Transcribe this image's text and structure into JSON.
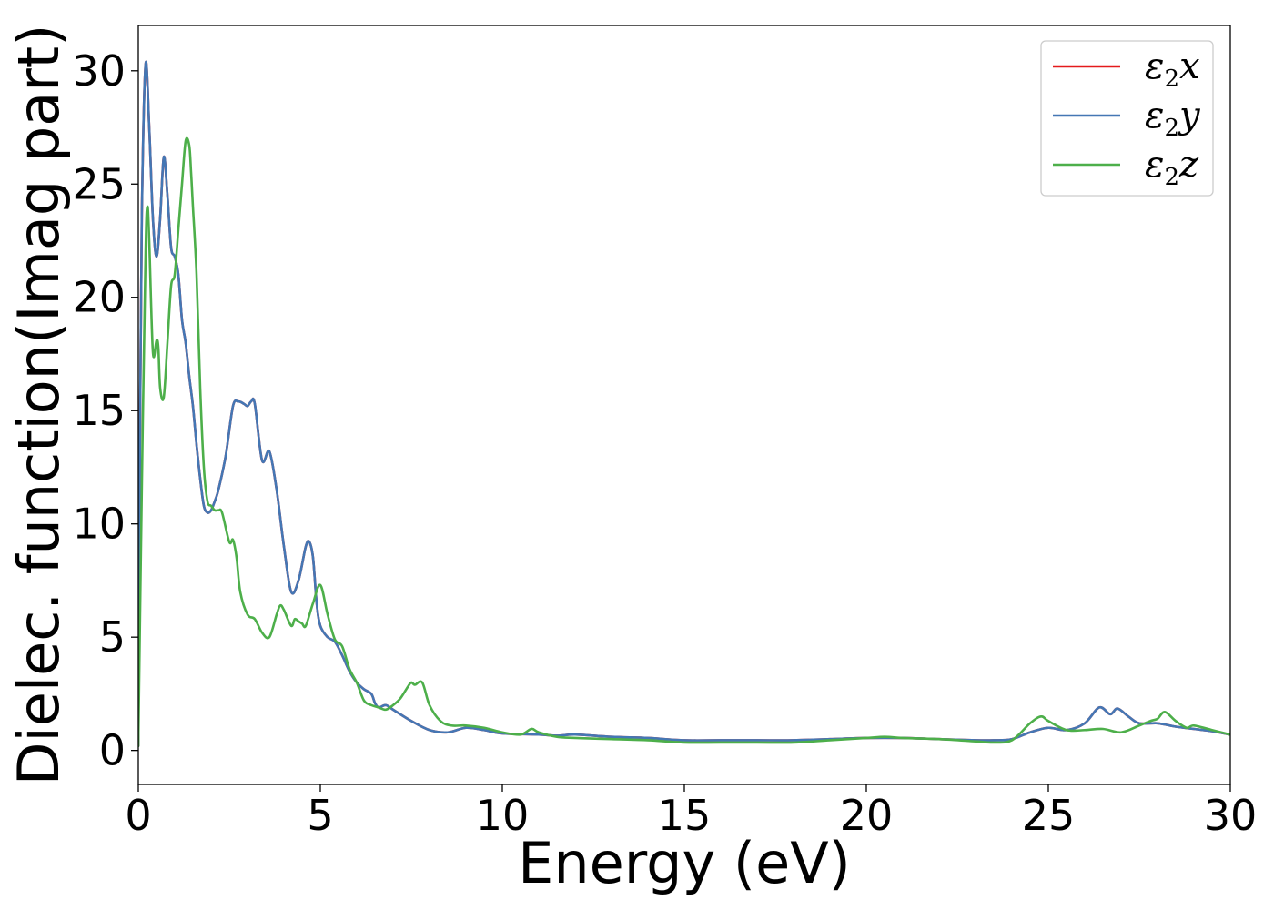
{
  "chart_data": {
    "type": "line",
    "xlabel": "Energy (eV)",
    "ylabel": "Dielec. function(Imag part)",
    "xlim": [
      0,
      30
    ],
    "ylim": [
      -1.5,
      32
    ],
    "xticks": [
      0,
      5,
      10,
      15,
      20,
      25,
      30
    ],
    "yticks": [
      0,
      5,
      10,
      15,
      20,
      25,
      30
    ],
    "grid": false,
    "legend_position": "top-right",
    "series": [
      {
        "name": "ε2x",
        "legend_symbol": "ε",
        "legend_sub": "2",
        "legend_var": "x",
        "color": "#e41a1c",
        "x": [
          0,
          0.05,
          0.1,
          0.2,
          0.3,
          0.4,
          0.5,
          0.6,
          0.7,
          0.8,
          0.9,
          1.0,
          1.1,
          1.2,
          1.3,
          1.4,
          1.5,
          1.6,
          1.7,
          1.8,
          1.9,
          2.0,
          2.1,
          2.2,
          2.4,
          2.6,
          2.75,
          2.9,
          3.0,
          3.1,
          3.2,
          3.4,
          3.6,
          3.8,
          4.0,
          4.2,
          4.4,
          4.6,
          4.7,
          4.8,
          4.9,
          5.0,
          5.2,
          5.4,
          5.6,
          5.8,
          6.0,
          6.2,
          6.4,
          6.5,
          6.6,
          6.8,
          7.0,
          7.5,
          8.0,
          8.5,
          9.0,
          9.5,
          10.0,
          11.0,
          11.5,
          12.0,
          13.0,
          14.0,
          15.0,
          16.0,
          17.0,
          18.0,
          19.0,
          20.0,
          21.0,
          22.0,
          23.0,
          23.5,
          24.0,
          24.5,
          25.0,
          25.5,
          26.0,
          26.4,
          26.7,
          26.9,
          27.2,
          27.5,
          28.0,
          28.5,
          29.0,
          29.5,
          30.0
        ],
        "y": [
          0.2,
          15,
          24,
          30.3,
          27.5,
          23.5,
          21.8,
          23.5,
          26.2,
          24.5,
          22.2,
          21.8,
          21.0,
          19.0,
          18.0,
          16.5,
          15.2,
          13.5,
          12.0,
          10.8,
          10.5,
          10.6,
          11.0,
          11.5,
          13.0,
          15.2,
          15.4,
          15.3,
          15.2,
          15.4,
          15.3,
          12.8,
          13.2,
          11.5,
          9.0,
          7.0,
          7.5,
          9.0,
          9.2,
          8.5,
          6.5,
          5.5,
          5.0,
          4.8,
          4.2,
          3.5,
          3.0,
          2.7,
          2.5,
          2.1,
          1.9,
          2.0,
          1.8,
          1.3,
          0.9,
          0.8,
          1.0,
          0.9,
          0.75,
          0.7,
          0.65,
          0.7,
          0.6,
          0.55,
          0.45,
          0.45,
          0.45,
          0.45,
          0.5,
          0.55,
          0.55,
          0.5,
          0.45,
          0.45,
          0.5,
          0.8,
          1.0,
          0.9,
          1.2,
          1.9,
          1.6,
          1.85,
          1.5,
          1.2,
          1.2,
          1.05,
          0.95,
          0.85,
          0.7
        ]
      },
      {
        "name": "ε2y",
        "legend_symbol": "ε",
        "legend_sub": "2",
        "legend_var": "y",
        "color": "#4477b4",
        "x": [
          0,
          0.05,
          0.1,
          0.2,
          0.3,
          0.4,
          0.5,
          0.6,
          0.7,
          0.8,
          0.9,
          1.0,
          1.1,
          1.2,
          1.3,
          1.4,
          1.5,
          1.6,
          1.7,
          1.8,
          1.9,
          2.0,
          2.1,
          2.2,
          2.4,
          2.6,
          2.75,
          2.9,
          3.0,
          3.1,
          3.2,
          3.4,
          3.6,
          3.8,
          4.0,
          4.2,
          4.4,
          4.6,
          4.7,
          4.8,
          4.9,
          5.0,
          5.2,
          5.4,
          5.6,
          5.8,
          6.0,
          6.2,
          6.4,
          6.5,
          6.6,
          6.8,
          7.0,
          7.5,
          8.0,
          8.5,
          9.0,
          9.5,
          10.0,
          11.0,
          11.5,
          12.0,
          13.0,
          14.0,
          15.0,
          16.0,
          17.0,
          18.0,
          19.0,
          20.0,
          21.0,
          22.0,
          23.0,
          23.5,
          24.0,
          24.5,
          25.0,
          25.5,
          26.0,
          26.4,
          26.7,
          26.9,
          27.2,
          27.5,
          28.0,
          28.5,
          29.0,
          29.5,
          30.0
        ],
        "y": [
          0.2,
          15,
          24,
          30.3,
          27.5,
          23.5,
          21.8,
          23.5,
          26.2,
          24.5,
          22.2,
          21.8,
          21.0,
          19.0,
          18.0,
          16.5,
          15.2,
          13.5,
          12.0,
          10.8,
          10.5,
          10.6,
          11.0,
          11.5,
          13.0,
          15.2,
          15.4,
          15.3,
          15.2,
          15.4,
          15.3,
          12.8,
          13.2,
          11.5,
          9.0,
          7.0,
          7.5,
          9.0,
          9.2,
          8.5,
          6.5,
          5.5,
          5.0,
          4.8,
          4.2,
          3.5,
          3.0,
          2.7,
          2.5,
          2.1,
          1.9,
          2.0,
          1.8,
          1.3,
          0.9,
          0.8,
          1.0,
          0.9,
          0.75,
          0.7,
          0.65,
          0.7,
          0.6,
          0.55,
          0.45,
          0.45,
          0.45,
          0.45,
          0.5,
          0.55,
          0.55,
          0.5,
          0.45,
          0.45,
          0.5,
          0.8,
          1.0,
          0.9,
          1.2,
          1.9,
          1.6,
          1.85,
          1.5,
          1.2,
          1.2,
          1.05,
          0.95,
          0.85,
          0.7
        ]
      },
      {
        "name": "ε2z",
        "legend_symbol": "ε",
        "legend_sub": "2",
        "legend_var": "z",
        "color": "#4daf4a",
        "x": [
          0,
          0.1,
          0.2,
          0.25,
          0.3,
          0.4,
          0.5,
          0.55,
          0.6,
          0.7,
          0.8,
          0.9,
          1.0,
          1.1,
          1.2,
          1.3,
          1.4,
          1.45,
          1.5,
          1.6,
          1.7,
          1.8,
          1.9,
          2.0,
          2.1,
          2.2,
          2.3,
          2.5,
          2.6,
          2.7,
          2.8,
          3.0,
          3.2,
          3.4,
          3.6,
          3.8,
          3.9,
          4.0,
          4.2,
          4.3,
          4.4,
          4.5,
          4.6,
          4.8,
          5.0,
          5.2,
          5.4,
          5.6,
          5.8,
          6.0,
          6.2,
          6.4,
          6.6,
          6.8,
          7.0,
          7.2,
          7.4,
          7.5,
          7.6,
          7.8,
          8.0,
          8.3,
          8.6,
          9.0,
          9.5,
          10.0,
          10.5,
          10.8,
          11.0,
          11.5,
          12.0,
          13.0,
          14.0,
          15.0,
          16.0,
          17.0,
          18.0,
          19.0,
          20.0,
          20.5,
          21.0,
          22.0,
          23.0,
          23.5,
          24.0,
          24.5,
          24.8,
          25.0,
          25.5,
          26.0,
          26.5,
          27.0,
          27.5,
          27.8,
          28.0,
          28.2,
          28.5,
          28.8,
          29.0,
          29.5,
          30.0
        ],
        "y": [
          0.2,
          12,
          22,
          24.0,
          22.5,
          17.6,
          18.1,
          17.8,
          16.0,
          15.6,
          18.0,
          20.5,
          21.0,
          23.0,
          25.0,
          26.9,
          26.7,
          25.5,
          24.0,
          21.0,
          16.0,
          12.5,
          11.0,
          10.8,
          10.6,
          10.6,
          10.5,
          9.2,
          9.3,
          8.5,
          7.0,
          6.0,
          5.8,
          5.2,
          5.0,
          6.0,
          6.4,
          6.2,
          5.5,
          5.8,
          5.7,
          5.6,
          5.5,
          6.5,
          7.3,
          6.0,
          4.9,
          4.6,
          3.6,
          3.0,
          2.2,
          2.0,
          1.9,
          1.8,
          2.0,
          2.3,
          2.8,
          3.0,
          2.9,
          3.0,
          2.0,
          1.3,
          1.1,
          1.1,
          1.0,
          0.8,
          0.7,
          0.95,
          0.8,
          0.6,
          0.55,
          0.5,
          0.45,
          0.35,
          0.35,
          0.35,
          0.35,
          0.45,
          0.55,
          0.6,
          0.55,
          0.5,
          0.4,
          0.35,
          0.45,
          1.2,
          1.5,
          1.3,
          0.9,
          0.9,
          0.95,
          0.8,
          1.1,
          1.3,
          1.4,
          1.7,
          1.3,
          1.0,
          1.1,
          0.9,
          0.7
        ]
      }
    ]
  }
}
